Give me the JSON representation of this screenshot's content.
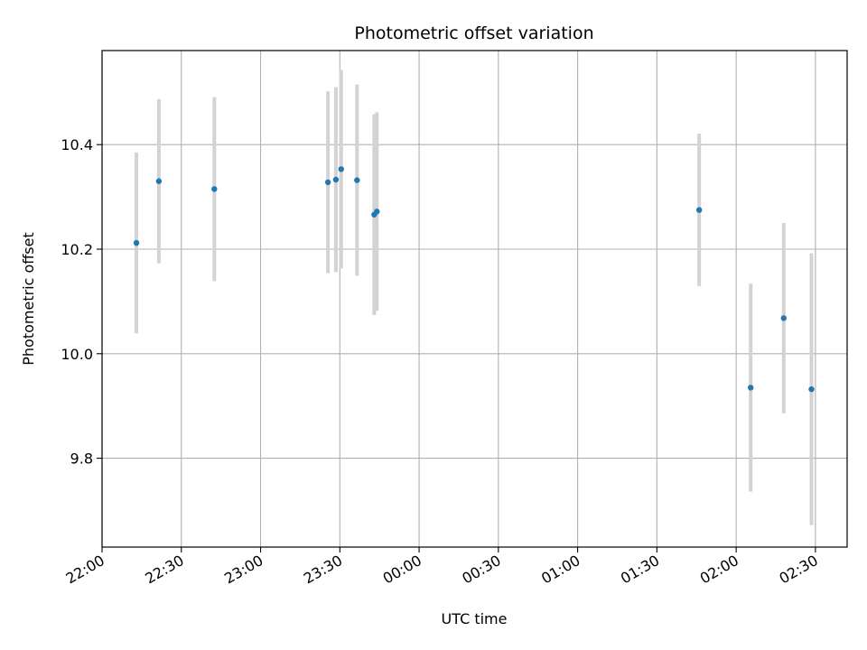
{
  "chart_data": {
    "type": "scatter",
    "title": "Photometric offset variation",
    "xlabel": "UTC time",
    "ylabel": "Photometric offset",
    "x_tick_labels": [
      "22:00",
      "22:30",
      "23:00",
      "23:30",
      "00:00",
      "00:30",
      "01:00",
      "01:30",
      "02:00",
      "02:30"
    ],
    "x_ticks_minutes": [
      0,
      30,
      60,
      90,
      120,
      150,
      180,
      210,
      240,
      270
    ],
    "y_ticks": [
      9.8,
      10.0,
      10.2,
      10.4
    ],
    "y_tick_labels": [
      "9.8",
      "10.0",
      "10.2",
      "10.4"
    ],
    "xlim_minutes": [
      0,
      282
    ],
    "ylim": [
      9.63,
      10.58
    ],
    "grid": true,
    "errorbar_color": "#d3d3d3",
    "point_color": "#1f77b4",
    "points": [
      {
        "t": 13,
        "y": 10.212,
        "err": 0.173
      },
      {
        "t": 21.5,
        "y": 10.33,
        "err": 0.157
      },
      {
        "t": 42.5,
        "y": 10.315,
        "err": 0.176
      },
      {
        "t": 85.5,
        "y": 10.328,
        "err": 0.174
      },
      {
        "t": 88.5,
        "y": 10.333,
        "err": 0.177
      },
      {
        "t": 90.5,
        "y": 10.353,
        "err": 0.19
      },
      {
        "t": 96.5,
        "y": 10.332,
        "err": 0.183
      },
      {
        "t": 103,
        "y": 10.266,
        "err": 0.192
      },
      {
        "t": 104,
        "y": 10.272,
        "err": 0.19
      },
      {
        "t": 226,
        "y": 10.275,
        "err": 0.146
      },
      {
        "t": 245.5,
        "y": 9.935,
        "err": 0.199
      },
      {
        "t": 258,
        "y": 10.068,
        "err": 0.182
      },
      {
        "t": 268.5,
        "y": 9.932,
        "err": 0.26
      }
    ]
  }
}
